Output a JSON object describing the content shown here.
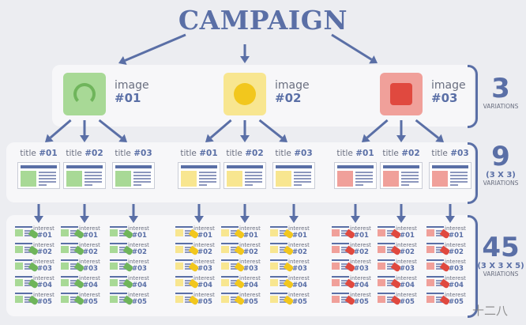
{
  "title": "CAMPAIGN",
  "colors": {
    "accent": "#5a6fa6",
    "green": "#8fcb7c",
    "yellow": "#f7e27a",
    "red": "#ea807a"
  },
  "images": [
    {
      "word": "image",
      "num": "#01",
      "icon": "headphones-icon",
      "color": "#a8d996",
      "pic": "#6fb55b"
    },
    {
      "word": "image",
      "num": "#02",
      "icon": "smiley-icon",
      "color": "#f8e690",
      "pic": "#f2c71d"
    },
    {
      "word": "image",
      "num": "#03",
      "icon": "heart-icon",
      "color": "#f0a09a",
      "pic": "#e0493f"
    }
  ],
  "titles": [
    {
      "word": "title",
      "num": "#01"
    },
    {
      "word": "title",
      "num": "#02"
    },
    {
      "word": "title",
      "num": "#03"
    }
  ],
  "interests": [
    {
      "word": "interest",
      "num": "#01"
    },
    {
      "word": "interest",
      "num": "#02"
    },
    {
      "word": "interest",
      "num": "#03"
    },
    {
      "word": "interest",
      "num": "#04"
    },
    {
      "word": "interest",
      "num": "#05"
    }
  ],
  "levels": [
    {
      "number": "3",
      "formula": "",
      "label": "VARIATIONS"
    },
    {
      "number": "9",
      "formula": "(3 X 3)",
      "label": "VARIATIONS"
    },
    {
      "number": "45",
      "formula": "(3 X 3 X 5)",
      "label": "VARIATIONS"
    }
  ],
  "watermark": "十二八"
}
